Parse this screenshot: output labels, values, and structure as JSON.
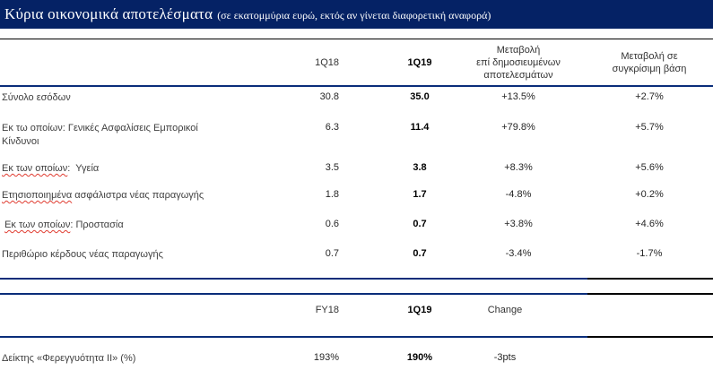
{
  "title": {
    "main": "Κύρια οικονομικά αποτελέσματα",
    "sub": "(σε εκατομμύρια ευρώ, εκτός αν γίνεται διαφορετική αναφορά)"
  },
  "colors": {
    "title_bar_navy": "#052265",
    "divider_navy": "#0a2d7a",
    "divider_black": "#000000",
    "q19_highlight_band": "#dce9f8",
    "squiggle_red": "#e03c31"
  },
  "table1": {
    "headers": {
      "q18": "1Q18",
      "q19": "1Q19",
      "chg_pub": "Μεταβολή\nεπί δημοσιευμένων\nαποτελεσμάτων",
      "chg_comp": "Μεταβολή σε\nσυγκρίσιμη βάση"
    },
    "rows": [
      {
        "label": "Σύνολο εσόδων",
        "q18": "30.8",
        "q19": "35.0",
        "chg_pub": "+13.5%",
        "chg_comp": "+2.7%"
      },
      {
        "label": "Εκ τω οποίων: Γενικές Ασφαλίσεις Εμπορικοί\nΚίνδυνοι",
        "q18": "6.3",
        "q19": "11.4",
        "chg_pub": "+79.8%",
        "chg_comp": "+5.7%"
      },
      {
        "label_sq": "Εκ των οποίων",
        "label_rest": ":  Υγεία",
        "q18": "3.5",
        "q19": "3.8",
        "chg_pub": "+8.3%",
        "chg_comp": "+5.6%"
      },
      {
        "label_sq": "Ετησιοποιημένα",
        "label_rest": " ασφάλιστρα νέας παραγωγής",
        "q18": "1.8",
        "q19": "1.7",
        "chg_pub": "-4.8%",
        "chg_comp": "+0.2%"
      },
      {
        "label_pre": " ",
        "label_sq": "Εκ των οποίων",
        "label_rest": ": Προστασία",
        "q18": "0.6",
        "q19": "0.7",
        "chg_pub": "+3.8%",
        "chg_comp": "+4.6%"
      },
      {
        "label": "Περιθώριο κέρδους νέας παραγωγής",
        "q18": "0.7",
        "q19": "0.7",
        "chg_pub": "-3.4%",
        "chg_comp": "-1.7%"
      }
    ]
  },
  "table2": {
    "headers": {
      "fy18": "FY18",
      "q19": "1Q19",
      "chg": "Change"
    },
    "rows": [
      {
        "label": "Δείκτης «Φερεγγυότητα II» (%)",
        "fy18": "193%",
        "q19": "190%",
        "chg": "-3pts"
      }
    ]
  }
}
